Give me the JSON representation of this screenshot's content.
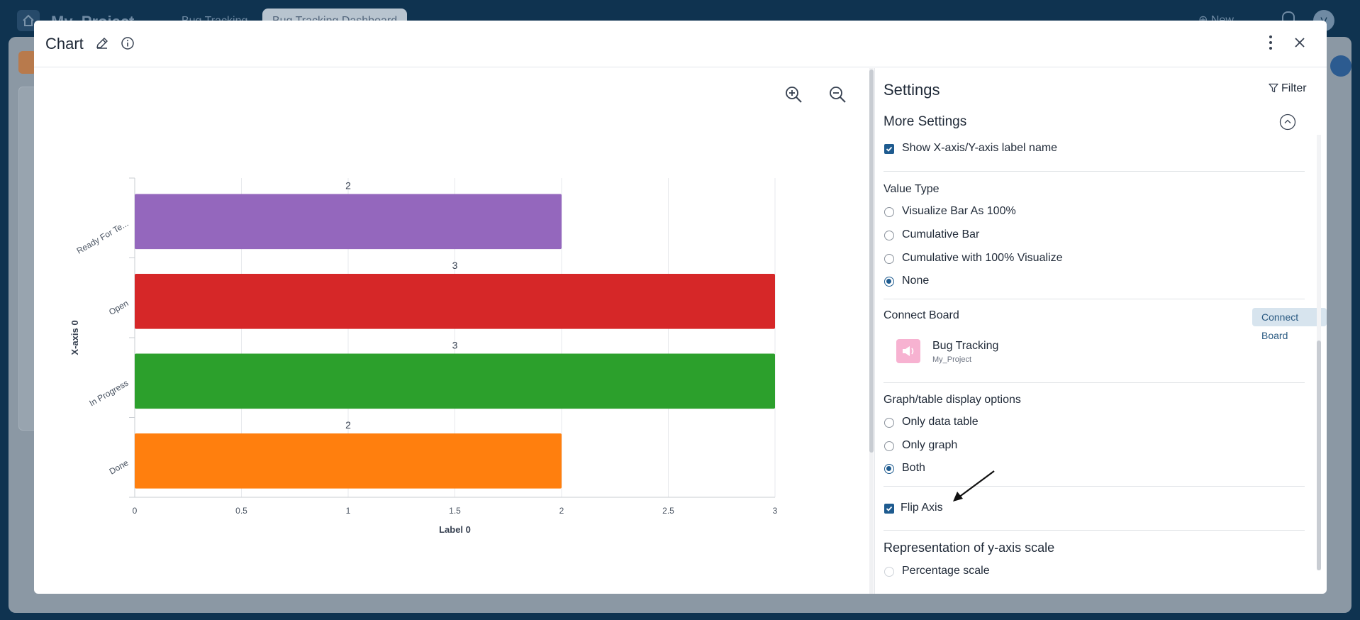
{
  "app": {
    "project": "My_Project",
    "tabs": [
      "Bug Tracking",
      "Bug Tracking Dashboard"
    ],
    "new_label": "New",
    "avatar_initial": "V"
  },
  "modal": {
    "title": "Chart"
  },
  "chart_data": {
    "type": "bar",
    "orientation": "horizontal",
    "categories": [
      "Ready For Te...",
      "Open",
      "In Progress",
      "Done"
    ],
    "values": [
      2,
      3,
      3,
      2
    ],
    "colors": [
      "#9467bd",
      "#d62728",
      "#2ca02c",
      "#ff7f0e"
    ],
    "data_labels": [
      "2",
      "3",
      "3",
      "2"
    ],
    "xlabel": "Label 0",
    "ylabel": "X-axis 0",
    "xlim": [
      0,
      3
    ],
    "xticks": [
      "0",
      "0.5",
      "1",
      "1.5",
      "2",
      "2.5",
      "3"
    ],
    "grid": true
  },
  "settings": {
    "title": "Settings",
    "filter_label": "Filter",
    "more_settings": "More Settings",
    "show_label_name": "Show X-axis/Y-axis label name",
    "value_type": {
      "heading": "Value Type",
      "options": [
        "Visualize Bar As 100%",
        "Cumulative Bar",
        "Cumulative with 100% Visualize",
        "None"
      ],
      "selected": "None"
    },
    "connect_board": {
      "heading": "Connect Board",
      "button": "Connect Board",
      "board_name": "Bug Tracking",
      "board_project": "My_Project"
    },
    "display_options": {
      "heading": "Graph/table display options",
      "options": [
        "Only data table",
        "Only graph",
        "Both"
      ],
      "selected": "Both"
    },
    "flip_axis": "Flip Axis",
    "y_scale": {
      "heading": "Representation of y-axis scale",
      "options": [
        "Percentage scale"
      ]
    }
  }
}
